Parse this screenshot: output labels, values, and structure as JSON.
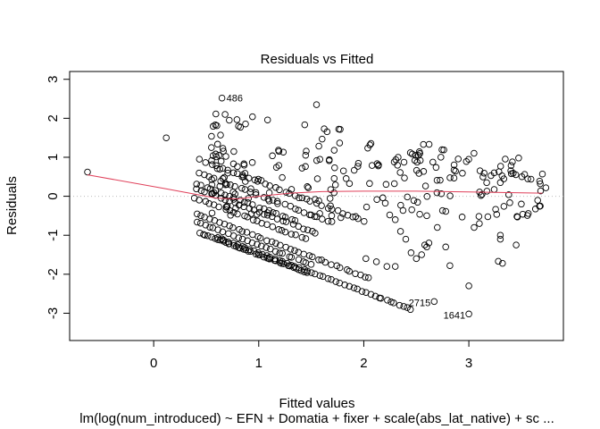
{
  "chart_data": {
    "type": "scatter",
    "title": "Residuals vs Fitted",
    "xlabel": "Fitted values",
    "sublabel": "lm(log(num_introduced) ~ EFN + Domatia + fixer + scale(abs_lat_native) + sc ...",
    "ylabel": "Residuals",
    "xlim": [
      -0.8,
      3.9
    ],
    "ylim": [
      -3.7,
      3.2
    ],
    "xticks": [
      "0",
      "1",
      "2",
      "3"
    ],
    "yticks": [
      "-3",
      "-2",
      "-1",
      "0",
      "1",
      "2",
      "3"
    ],
    "grid": false,
    "reference_line": {
      "y": 0,
      "style": "dotted",
      "color": "#bbbbbb"
    },
    "smoother": {
      "color": "#e0405a",
      "points": [
        [
          -0.63,
          0.55
        ],
        [
          0.1,
          0.2
        ],
        [
          0.6,
          -0.05
        ],
        [
          0.8,
          -0.07
        ],
        [
          1.0,
          0.0
        ],
        [
          1.3,
          0.08
        ],
        [
          1.6,
          0.12
        ],
        [
          2.0,
          0.13
        ],
        [
          2.5,
          0.13
        ],
        [
          3.0,
          0.11
        ],
        [
          3.5,
          0.09
        ],
        [
          3.7,
          0.08
        ]
      ]
    },
    "labeled_points": [
      {
        "x": 0.65,
        "y": 2.52,
        "label": "486"
      },
      {
        "x": 2.67,
        "y": -2.7,
        "label": "2715"
      },
      {
        "x": 3.0,
        "y": -3.02,
        "label": "1641"
      }
    ],
    "band_params": [
      {
        "ys": 1.37,
        "slope": -1.0,
        "x0": 0.45,
        "x1": 2.0,
        "n": 32,
        "jitter": 0.04
      },
      {
        "ys": 1.03,
        "slope": -1.0,
        "x0": 0.42,
        "x1": 1.7,
        "n": 26,
        "jitter": 0.04
      },
      {
        "ys": 0.72,
        "slope": -1.0,
        "x0": 0.42,
        "x1": 1.35,
        "n": 22,
        "jitter": 0.03
      },
      {
        "ys": 0.6,
        "slope": -1.0,
        "x0": 0.4,
        "x1": 1.55,
        "n": 26,
        "jitter": 0.03
      },
      {
        "ys": 0.35,
        "slope": -1.0,
        "x0": 0.4,
        "x1": 1.45,
        "n": 24,
        "jitter": 0.03
      },
      {
        "ys": -0.05,
        "slope": -1.0,
        "x0": 0.4,
        "x1": 2.05,
        "n": 38,
        "jitter": 0.03
      },
      {
        "ys": -0.25,
        "slope": -1.0,
        "x0": 0.4,
        "x1": 1.5,
        "n": 26,
        "jitter": 0.02
      },
      {
        "ys": -0.5,
        "slope": -1.0,
        "x0": 0.45,
        "x1": 1.45,
        "n": 40,
        "jitter": 0.02
      },
      {
        "ys": -0.45,
        "slope": -1.0,
        "x0": 0.6,
        "x1": 2.45,
        "n": 48,
        "jitter": 0.02
      }
    ],
    "cloud_params": {
      "x0": 0.55,
      "x1": 3.75,
      "n": 230,
      "ymin": -0.55,
      "ymax": 2.3,
      "seed": 7
    },
    "extra_points": [
      [
        -0.63,
        0.62
      ],
      [
        0.12,
        1.5
      ],
      [
        0.55,
        1.25
      ],
      [
        0.68,
        2.1
      ],
      [
        0.72,
        1.95
      ],
      [
        1.55,
        2.35
      ],
      [
        3.7,
        0.57
      ],
      [
        3.68,
        0.32
      ],
      [
        3.68,
        -0.25
      ],
      [
        3.5,
        -0.2
      ],
      [
        3.45,
        -1.25
      ],
      [
        3.3,
        -1.0
      ],
      [
        3.3,
        -1.1
      ],
      [
        3.32,
        -1.72
      ],
      [
        3.28,
        -1.67
      ],
      [
        3.0,
        -2.3
      ],
      [
        2.82,
        -1.78
      ],
      [
        2.78,
        -1.3
      ],
      [
        2.58,
        -1.25
      ],
      [
        2.55,
        -1.5
      ],
      [
        2.5,
        -1.6
      ],
      [
        2.45,
        -1.45
      ],
      [
        2.4,
        -1.1
      ],
      [
        2.3,
        -1.8
      ],
      [
        2.22,
        -1.8
      ],
      [
        2.12,
        -1.68
      ],
      [
        2.02,
        -1.6
      ],
      [
        2.6,
        -1.3
      ],
      [
        2.62,
        -1.2
      ],
      [
        2.7,
        -0.8
      ],
      [
        3.1,
        -0.7
      ],
      [
        3.05,
        -0.8
      ],
      [
        2.6,
        -0.5
      ],
      [
        2.35,
        -0.9
      ],
      [
        2.3,
        -0.6
      ]
    ]
  }
}
